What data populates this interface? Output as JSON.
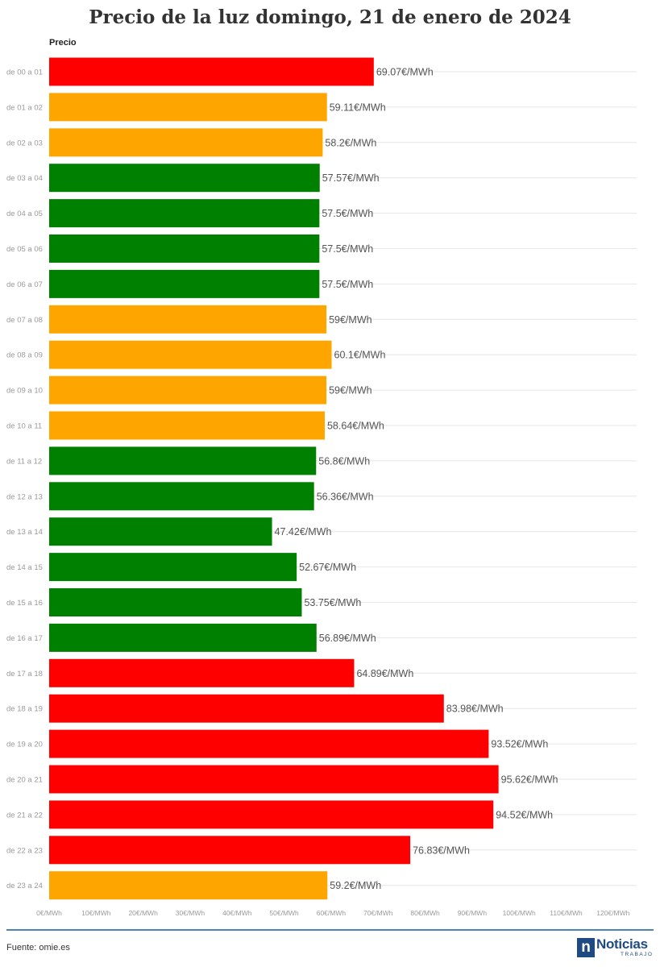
{
  "title": "Precio de la luz domingo, 21 de enero de 2024",
  "chart_data": {
    "type": "bar",
    "orientation": "horizontal",
    "title": "Precio de la luz domingo, 21 de enero de 2024",
    "series": [
      {
        "name": "Precio",
        "values": [
          69.07,
          59.11,
          58.2,
          57.57,
          57.5,
          57.5,
          57.5,
          59,
          60.1,
          59,
          58.64,
          56.8,
          56.36,
          47.42,
          52.67,
          53.75,
          56.89,
          64.89,
          83.98,
          93.52,
          95.62,
          94.52,
          76.83,
          59.2
        ]
      }
    ],
    "categories": [
      "de 00 a 01",
      "de 01 a 02",
      "de 02 a 03",
      "de 03 a 04",
      "de 04 a 05",
      "de 05 a 06",
      "de 06 a 07",
      "de 07 a 08",
      "de 08 a 09",
      "de 09 a 10",
      "de 10 a 11",
      "de 11 a 12",
      "de 12 a 13",
      "de 13 a 14",
      "de 14 a 15",
      "de 15 a 16",
      "de 16 a 17",
      "de 17 a 18",
      "de 18 a 19",
      "de 19 a 20",
      "de 20 a 21",
      "de 21 a 22",
      "de 22 a 23",
      "de 23 a 24"
    ],
    "value_labels": [
      "69.07€/MWh",
      "59.11€/MWh",
      "58.2€/MWh",
      "57.57€/MWh",
      "57.5€/MWh",
      "57.5€/MWh",
      "57.5€/MWh",
      "59€/MWh",
      "60.1€/MWh",
      "59€/MWh",
      "58.64€/MWh",
      "56.8€/MWh",
      "56.36€/MWh",
      "47.42€/MWh",
      "52.67€/MWh",
      "53.75€/MWh",
      "56.89€/MWh",
      "64.89€/MWh",
      "83.98€/MWh",
      "93.52€/MWh",
      "95.62€/MWh",
      "94.52€/MWh",
      "76.83€/MWh",
      "59.2€/MWh"
    ],
    "bar_colors": [
      "#ff0000",
      "#ffa500",
      "#ffa500",
      "#008000",
      "#008000",
      "#008000",
      "#008000",
      "#ffa500",
      "#ffa500",
      "#ffa500",
      "#ffa500",
      "#008000",
      "#008000",
      "#008000",
      "#008000",
      "#008000",
      "#008000",
      "#ff0000",
      "#ff0000",
      "#ff0000",
      "#ff0000",
      "#ff0000",
      "#ff0000",
      "#ffa500"
    ],
    "x_ticks": [
      0,
      10,
      20,
      30,
      40,
      50,
      60,
      70,
      80,
      90,
      100,
      110,
      120
    ],
    "x_tick_labels": [
      "0€/MWh",
      "10€/MWh",
      "20€/MWh",
      "30€/MWh",
      "40€/MWh",
      "50€/MWh",
      "60€/MWh",
      "70€/MWh",
      "80€/MWh",
      "90€/MWh",
      "100€/MWh",
      "110€/MWh",
      "120€/MWh"
    ],
    "xlim": [
      0,
      125
    ],
    "grid": true
  },
  "footer": {
    "source": "Fuente: omie.es",
    "logo_letter": "n",
    "logo_word": "Noticias",
    "logo_sub": "TRABAJO"
  },
  "colors": {
    "high": "#ff0000",
    "medium": "#ffa500",
    "low": "#008000",
    "accent": "#4a86b4"
  }
}
